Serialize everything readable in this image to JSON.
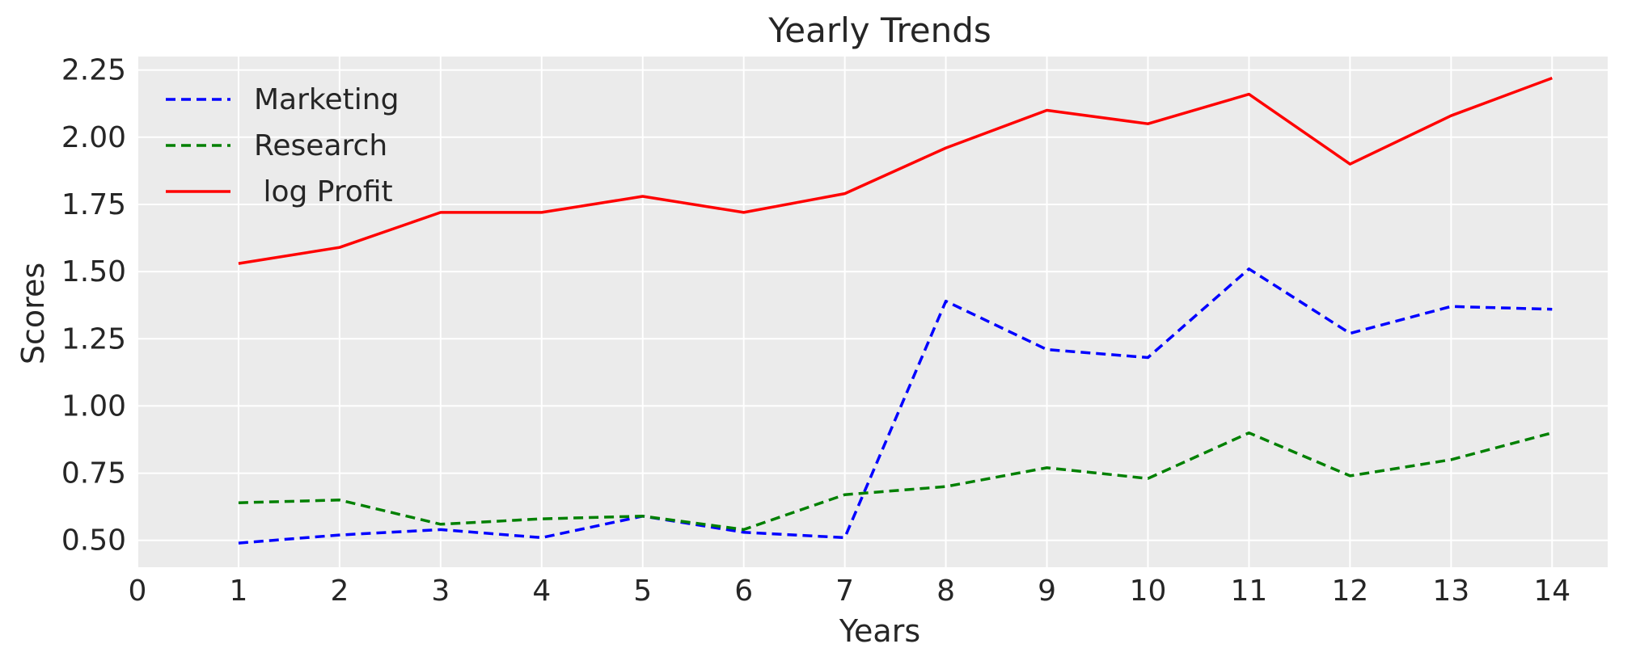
{
  "chart_data": {
    "type": "line",
    "title": "Yearly Trends",
    "xlabel": "Years",
    "ylabel": "Scores",
    "xlim": [
      0,
      14.55
    ],
    "ylim": [
      0.4,
      2.3
    ],
    "xticks": [
      0,
      1,
      2,
      3,
      4,
      5,
      6,
      7,
      8,
      9,
      10,
      11,
      12,
      13,
      14
    ],
    "xtick_labels": [
      "0",
      "1",
      "2",
      "3",
      "4",
      "5",
      "6",
      "7",
      "8",
      "9",
      "10",
      "11",
      "12",
      "13",
      "14"
    ],
    "yticks": [
      0.5,
      0.75,
      1.0,
      1.25,
      1.5,
      1.75,
      2.0,
      2.25
    ],
    "ytick_labels": [
      "0.50",
      "0.75",
      "1.00",
      "1.25",
      "1.50",
      "1.75",
      "2.00",
      "2.25"
    ],
    "grid": true,
    "legend_position": "top-left",
    "x": [
      1,
      2,
      3,
      4,
      5,
      6,
      7,
      8,
      9,
      10,
      11,
      12,
      13,
      14
    ],
    "series": [
      {
        "name": "Marketing",
        "color": "#0000ff",
        "style": "dashed",
        "values": [
          0.49,
          0.52,
          0.54,
          0.51,
          0.59,
          0.53,
          0.51,
          1.39,
          1.21,
          1.18,
          1.51,
          1.27,
          1.37,
          1.36
        ]
      },
      {
        "name": "Research",
        "color": "#008000",
        "style": "dashed",
        "values": [
          0.64,
          0.65,
          0.56,
          0.58,
          0.59,
          0.54,
          0.67,
          0.7,
          0.77,
          0.73,
          0.9,
          0.74,
          0.8,
          0.9
        ]
      },
      {
        "name": " log Profit",
        "color": "#ff0000",
        "style": "solid",
        "values": [
          1.53,
          1.59,
          1.72,
          1.72,
          1.78,
          1.72,
          1.79,
          1.96,
          2.1,
          2.05,
          2.16,
          1.9,
          2.08,
          2.22
        ]
      }
    ]
  }
}
